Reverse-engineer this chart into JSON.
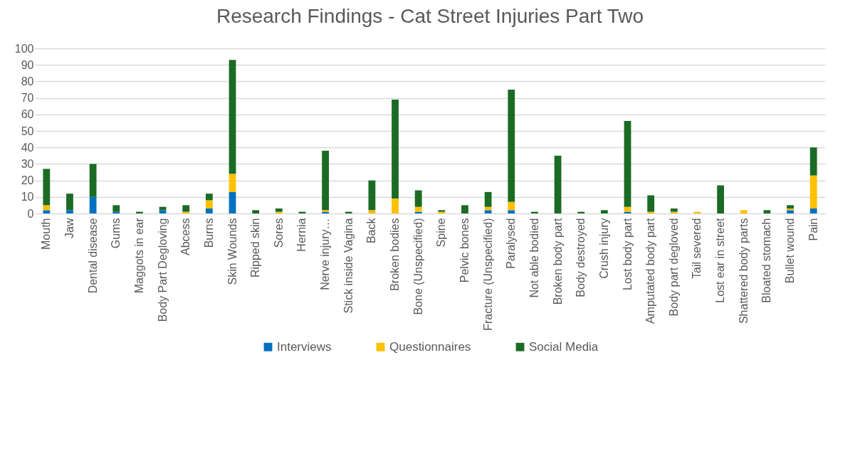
{
  "chart_data": {
    "type": "bar",
    "title": "Research Findings - Cat Street Injuries Part Two",
    "stacked": true,
    "grid": "y",
    "legend": "bottom",
    "categories": [
      "Mouth",
      "Jaw",
      "Dental disease",
      "Gums",
      "Maggots in ear",
      "Body Part Degloving",
      "Abcess",
      "Burns",
      "Skin Wounds",
      "Ripped skin",
      "Sores",
      "Hernia",
      "Nerve injury…",
      "Stick inside Vagina",
      "Back",
      "Broken bodies",
      "Bone (Unspecified)",
      "Spine",
      "Pelvic bones",
      "Fracture (Unspecified)",
      "Paralysed",
      "Not able bodied",
      "Broken body part",
      "Body destroyed",
      "Crush injury",
      "Lost body part",
      "Amputated body part",
      "Body part degloved",
      "Tail severed",
      "Lost ear in street",
      "Shattered body parts",
      "Bloated stomach",
      "Bullet wound",
      "Pain"
    ],
    "ylim": [
      0,
      100
    ],
    "yticks": [
      0,
      10,
      20,
      30,
      40,
      50,
      60,
      70,
      80,
      90,
      100
    ],
    "series": [
      {
        "name": "Interviews",
        "color": "#0070c0",
        "values": [
          2,
          2,
          10,
          1,
          null,
          2,
          null,
          3,
          13,
          null,
          null,
          null,
          1,
          null,
          null,
          null,
          1,
          null,
          null,
          2,
          2,
          null,
          null,
          null,
          null,
          1,
          null,
          null,
          null,
          null,
          null,
          null,
          2,
          3
        ]
      },
      {
        "name": "Questionnaires",
        "color": "#ffc000",
        "values": [
          3,
          null,
          null,
          null,
          null,
          null,
          1,
          5,
          11,
          null,
          1,
          null,
          1,
          null,
          2,
          9,
          3,
          1,
          null,
          2,
          5,
          null,
          null,
          null,
          null,
          3,
          1,
          1,
          1,
          null,
          2,
          null,
          1,
          20
        ]
      },
      {
        "name": "Social Media",
        "color": "#1b6b24",
        "values": [
          22,
          10,
          20,
          4,
          1,
          2,
          4,
          4,
          69,
          2,
          2,
          1,
          36,
          1,
          18,
          60,
          10,
          1,
          5,
          9,
          68,
          1,
          35,
          1,
          2,
          52,
          10,
          2,
          null,
          17,
          null,
          2,
          2,
          17
        ]
      }
    ]
  }
}
